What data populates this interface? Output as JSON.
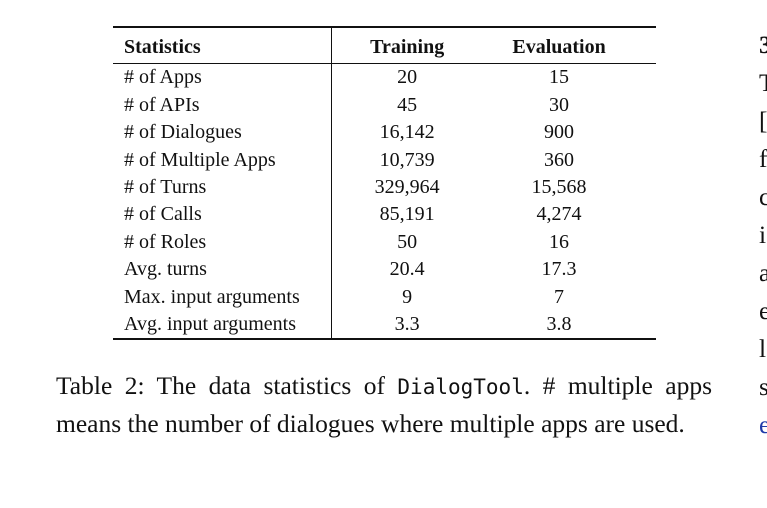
{
  "table": {
    "headers": [
      "Statistics",
      "Training",
      "Evaluation"
    ],
    "rows": [
      [
        "# of Apps",
        "20",
        "15"
      ],
      [
        "# of APIs",
        "45",
        "30"
      ],
      [
        "# of Dialogues",
        "16,142",
        "900"
      ],
      [
        "# of Multiple Apps",
        "10,739",
        "360"
      ],
      [
        "# of Turns",
        "329,964",
        "15,568"
      ],
      [
        "# of Calls",
        "85,191",
        "4,274"
      ],
      [
        "# of Roles",
        "50",
        "16"
      ],
      [
        "Avg. turns",
        "20.4",
        "17.3"
      ],
      [
        "Max. input arguments",
        "9",
        "7"
      ],
      [
        "Avg. input arguments",
        "3.3",
        "3.8"
      ]
    ]
  },
  "caption": {
    "prefix": "Table 2: The data statistics of ",
    "code": "DialogTool",
    "suffix": ". # multiple apps means the number of dialogues where multiple apps are used."
  },
  "right_column_fragments": [
    "3",
    "T",
    "[",
    "f",
    "c",
    "i",
    "a",
    "e",
    "l",
    "s",
    "e"
  ]
}
